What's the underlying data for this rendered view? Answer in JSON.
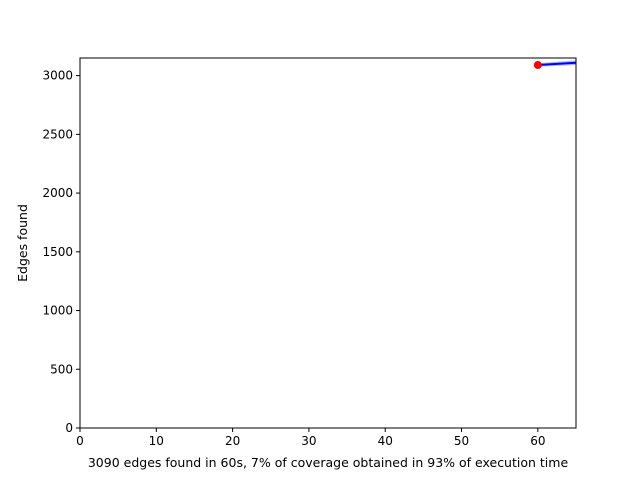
{
  "chart_data": {
    "type": "line",
    "title": "",
    "xlabel": "3090 edges found in 60s, 7% of coverage obtained in 93% of execution time",
    "ylabel": "Edges found",
    "xlim": [
      0,
      65
    ],
    "ylim": [
      0,
      3150
    ],
    "xticks": [
      0,
      10,
      20,
      30,
      40,
      50,
      60
    ],
    "yticks": [
      0,
      500,
      1000,
      1500,
      2000,
      2500,
      3000
    ],
    "grid": false,
    "legend": "none",
    "series": [
      {
        "color": "#0000ff",
        "band_color": "#4169e1",
        "x": [
          60,
          65
        ],
        "y": [
          3090,
          3110
        ],
        "band_lower": [
          3075,
          3090
        ],
        "band_upper": [
          3105,
          3130
        ]
      }
    ],
    "markers": [
      {
        "x": 60,
        "y": 3090,
        "color": "#ff0000"
      }
    ]
  }
}
